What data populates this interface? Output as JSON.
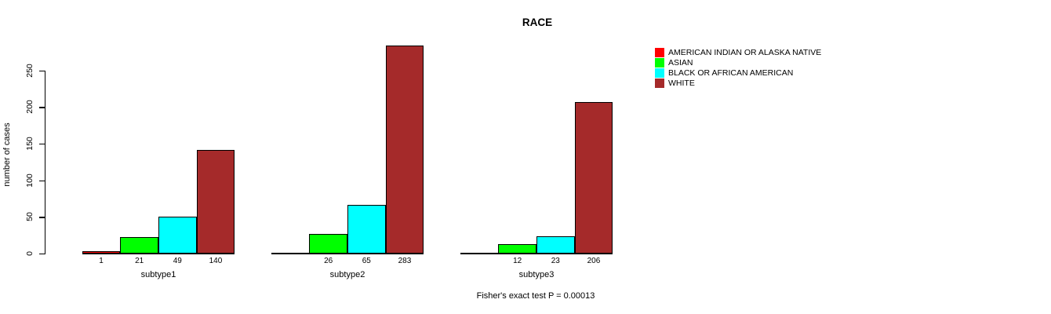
{
  "chart_data": {
    "type": "bar",
    "title": "RACE",
    "xlabel": "",
    "ylabel": "number of cases",
    "categories": [
      "subtype1",
      "subtype2",
      "subtype3"
    ],
    "series": [
      {
        "name": "AMERICAN INDIAN OR ALASKA NATIVE",
        "color": "#FF0000",
        "values": [
          1,
          0,
          0
        ]
      },
      {
        "name": "ASIAN",
        "color": "#00FF00",
        "values": [
          21,
          26,
          12
        ]
      },
      {
        "name": "BLACK OR AFRICAN AMERICAN",
        "color": "#00FFFF",
        "values": [
          49,
          65,
          23
        ]
      },
      {
        "name": "WHITE",
        "color": "#A52A2A",
        "values": [
          140,
          283,
          206
        ]
      }
    ],
    "bar_value_labels": [
      [
        "1",
        "21",
        "49",
        "140"
      ],
      [
        "",
        "26",
        "65",
        "283"
      ],
      [
        "",
        "12",
        "23",
        "206"
      ]
    ],
    "y_ticks": [
      0,
      50,
      100,
      150,
      200,
      250
    ],
    "ylim": [
      0,
      290
    ],
    "grid": false,
    "legend_position": "right-top",
    "annotation": "Fisher's exact test P = 0.00013",
    "bar_border_color": "#000000",
    "axis_color": "#000000"
  }
}
